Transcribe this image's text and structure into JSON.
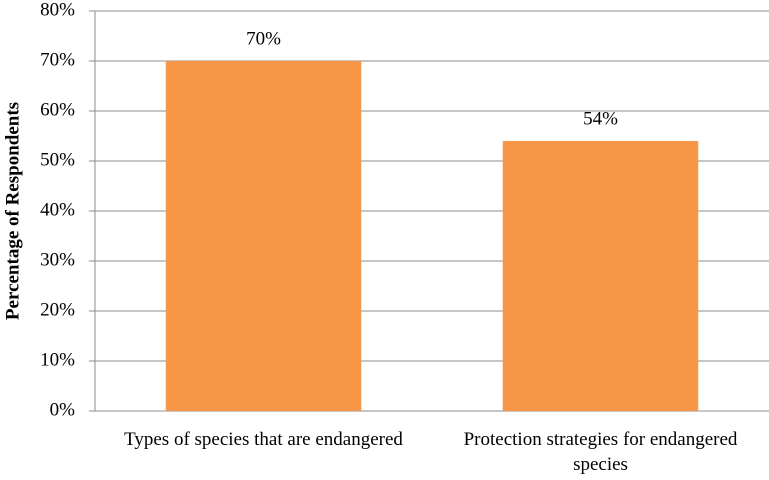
{
  "chart_data": {
    "type": "bar",
    "y_label": "Percentage of Respondents",
    "categories": [
      "Types of species that are endangered",
      "Protection strategies for endangered species"
    ],
    "values": [
      70,
      54
    ],
    "value_labels": [
      "70%",
      "54%"
    ],
    "color": "#f79646",
    "ylim": [
      0,
      80
    ],
    "yticks": [
      {
        "value": 0,
        "label": "0%"
      },
      {
        "value": 10,
        "label": "10%"
      },
      {
        "value": 20,
        "label": "20%"
      },
      {
        "value": 30,
        "label": "30%"
      },
      {
        "value": 40,
        "label": "40%"
      },
      {
        "value": 50,
        "label": "50%"
      },
      {
        "value": 60,
        "label": "60%"
      },
      {
        "value": 70,
        "label": "70%"
      },
      {
        "value": 80,
        "label": "80%"
      }
    ],
    "grid": true
  }
}
